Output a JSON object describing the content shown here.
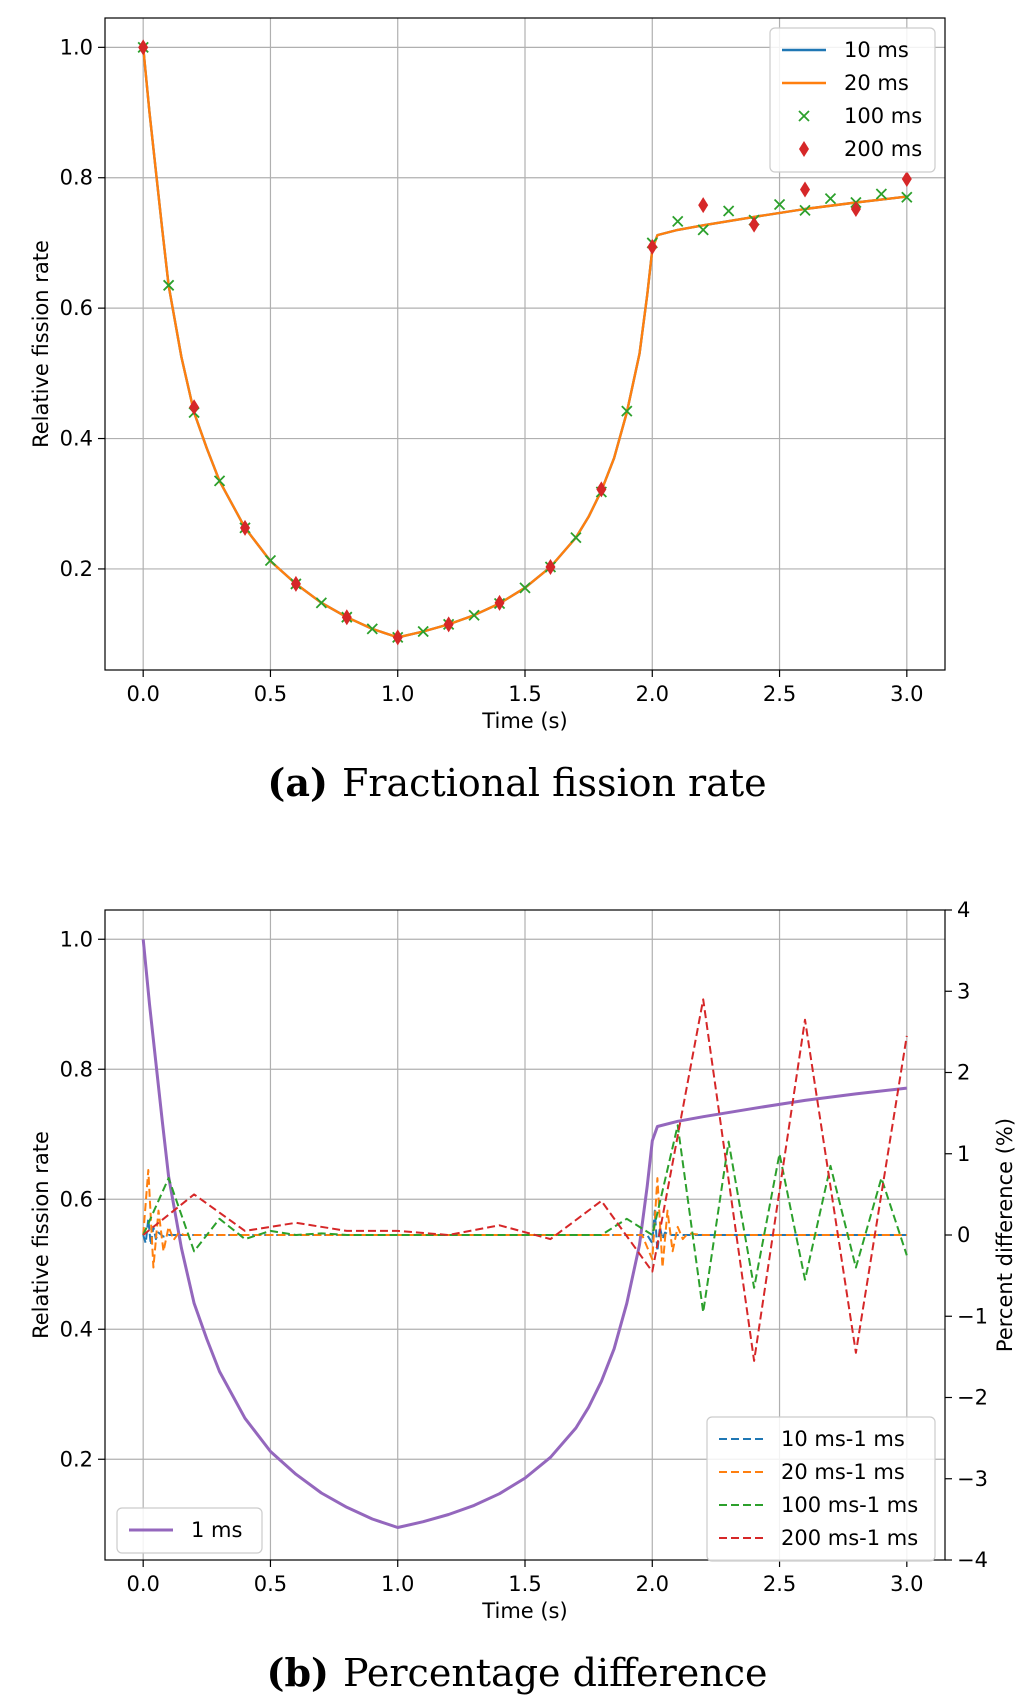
{
  "colors": {
    "c10": "#1f77b4",
    "c20": "#ff7f0e",
    "c100": "#2ca02c",
    "c200": "#d62728",
    "c1": "#9467bd",
    "grid": "#b0b0b0",
    "axis": "#000000"
  },
  "chart_data": [
    {
      "type": "line",
      "xlabel": "Time (s)",
      "ylabel": "Relative fission rate",
      "xlim": [
        -0.15,
        3.15
      ],
      "ylim": [
        0.045,
        1.045
      ],
      "xticks": [
        "0.0",
        "0.5",
        "1.0",
        "1.5",
        "2.0",
        "2.5",
        "3.0"
      ],
      "yticks": [
        "0.2",
        "0.4",
        "0.6",
        "0.8",
        "1.0"
      ],
      "grid": true,
      "legend_position": "top-right",
      "caption_tag": "(a)",
      "caption_text": "Fractional fission rate",
      "series": [
        {
          "name": "10 ms",
          "style": "line",
          "color": "#1f77b4",
          "x": [
            0,
            0.025,
            0.05,
            0.075,
            0.1,
            0.15,
            0.2,
            0.25,
            0.3,
            0.4,
            0.5,
            0.6,
            0.7,
            0.8,
            0.9,
            1.0,
            1.1,
            1.2,
            1.3,
            1.4,
            1.5,
            1.6,
            1.7,
            1.75,
            1.8,
            1.85,
            1.9,
            1.95,
            1.98,
            2.0,
            2.02,
            2.1,
            2.2,
            2.4,
            2.6,
            2.8,
            3.0
          ],
          "y": [
            1.0,
            0.9,
            0.81,
            0.72,
            0.635,
            0.525,
            0.44,
            0.385,
            0.335,
            0.263,
            0.212,
            0.177,
            0.148,
            0.126,
            0.108,
            0.095,
            0.104,
            0.115,
            0.129,
            0.147,
            0.171,
            0.203,
            0.248,
            0.28,
            0.32,
            0.37,
            0.44,
            0.53,
            0.62,
            0.69,
            0.712,
            0.72,
            0.727,
            0.74,
            0.752,
            0.762,
            0.771
          ]
        },
        {
          "name": "20 ms",
          "style": "line",
          "color": "#ff7f0e",
          "x": [
            0,
            0.025,
            0.05,
            0.075,
            0.1,
            0.15,
            0.2,
            0.25,
            0.3,
            0.4,
            0.5,
            0.6,
            0.7,
            0.8,
            0.9,
            1.0,
            1.1,
            1.2,
            1.3,
            1.4,
            1.5,
            1.6,
            1.7,
            1.75,
            1.8,
            1.85,
            1.9,
            1.95,
            1.98,
            2.0,
            2.02,
            2.1,
            2.2,
            2.4,
            2.6,
            2.8,
            3.0
          ],
          "y": [
            1.0,
            0.9,
            0.81,
            0.72,
            0.635,
            0.525,
            0.44,
            0.385,
            0.335,
            0.263,
            0.212,
            0.177,
            0.148,
            0.126,
            0.108,
            0.095,
            0.104,
            0.115,
            0.129,
            0.147,
            0.171,
            0.203,
            0.248,
            0.28,
            0.32,
            0.37,
            0.44,
            0.53,
            0.62,
            0.69,
            0.712,
            0.72,
            0.727,
            0.74,
            0.752,
            0.762,
            0.771
          ]
        },
        {
          "name": "100 ms",
          "style": "x",
          "color": "#2ca02c",
          "x": [
            0,
            0.1,
            0.2,
            0.3,
            0.4,
            0.5,
            0.6,
            0.7,
            0.8,
            0.9,
            1.0,
            1.1,
            1.2,
            1.3,
            1.4,
            1.5,
            1.6,
            1.7,
            1.8,
            1.9,
            2.0,
            2.1,
            2.2,
            2.3,
            2.4,
            2.5,
            2.6,
            2.7,
            2.8,
            2.9,
            3.0
          ],
          "y": [
            1.0,
            0.635,
            0.44,
            0.335,
            0.263,
            0.213,
            0.177,
            0.148,
            0.126,
            0.108,
            0.095,
            0.104,
            0.115,
            0.129,
            0.147,
            0.171,
            0.203,
            0.248,
            0.318,
            0.442,
            0.7,
            0.733,
            0.72,
            0.749,
            0.735,
            0.759,
            0.75,
            0.768,
            0.762,
            0.775,
            0.77
          ]
        },
        {
          "name": "200 ms",
          "style": "diamond",
          "color": "#d62728",
          "x": [
            0,
            0.2,
            0.4,
            0.6,
            0.8,
            1.0,
            1.2,
            1.4,
            1.6,
            1.8,
            2.0,
            2.2,
            2.4,
            2.6,
            2.8,
            3.0
          ],
          "y": [
            1.0,
            0.448,
            0.263,
            0.177,
            0.126,
            0.095,
            0.115,
            0.148,
            0.203,
            0.322,
            0.694,
            0.758,
            0.728,
            0.782,
            0.752,
            0.798
          ]
        }
      ]
    },
    {
      "type": "line",
      "xlabel": "Time (s)",
      "ylabel": "Relative fission rate",
      "y2label": "Percent difference (%)",
      "xlim": [
        -0.15,
        3.15
      ],
      "ylim": [
        0.045,
        1.045
      ],
      "y2lim": [
        -4,
        4
      ],
      "xticks": [
        "0.0",
        "0.5",
        "1.0",
        "1.5",
        "2.0",
        "2.5",
        "3.0"
      ],
      "yticks": [
        "0.2",
        "0.4",
        "0.6",
        "0.8",
        "1.0"
      ],
      "y2ticks": [
        "−4",
        "−3",
        "−2",
        "−1",
        "0",
        "1",
        "2",
        "3",
        "4"
      ],
      "grid": true,
      "legend_position": "bottom-right and bottom-left",
      "caption_tag": "(b)",
      "caption_text": "Percentage difference",
      "series": [
        {
          "name": "1 ms",
          "axis": "left",
          "style": "line",
          "color": "#9467bd",
          "x": [
            0,
            0.025,
            0.05,
            0.075,
            0.1,
            0.15,
            0.2,
            0.25,
            0.3,
            0.4,
            0.5,
            0.6,
            0.7,
            0.8,
            0.9,
            1.0,
            1.1,
            1.2,
            1.3,
            1.4,
            1.5,
            1.6,
            1.7,
            1.75,
            1.8,
            1.85,
            1.9,
            1.95,
            1.98,
            2.0,
            2.02,
            2.1,
            2.2,
            2.4,
            2.6,
            2.8,
            3.0
          ],
          "y": [
            1.0,
            0.9,
            0.81,
            0.72,
            0.635,
            0.525,
            0.44,
            0.385,
            0.335,
            0.263,
            0.212,
            0.177,
            0.148,
            0.126,
            0.108,
            0.095,
            0.104,
            0.115,
            0.129,
            0.147,
            0.171,
            0.203,
            0.248,
            0.28,
            0.32,
            0.37,
            0.44,
            0.53,
            0.62,
            0.69,
            0.712,
            0.72,
            0.727,
            0.74,
            0.752,
            0.762,
            0.771
          ]
        },
        {
          "name": "10 ms-1 ms",
          "axis": "right",
          "style": "dashed",
          "color": "#1f77b4",
          "x": [
            0,
            0.01,
            0.02,
            0.03,
            0.04,
            0.05,
            0.06,
            0.08,
            0.1,
            0.5,
            1.0,
            1.5,
            1.98,
            2.0,
            2.01,
            2.02,
            2.03,
            2.04,
            2.05,
            2.07,
            2.1,
            2.5,
            3.0
          ],
          "y": [
            0,
            -0.1,
            0.2,
            -0.12,
            0.1,
            -0.05,
            0.03,
            -0.02,
            0,
            0,
            0,
            0,
            0,
            -0.1,
            0.3,
            -0.2,
            0.1,
            -0.05,
            0.03,
            0,
            0,
            0,
            0
          ]
        },
        {
          "name": "20 ms-1 ms",
          "axis": "right",
          "style": "dashed",
          "color": "#ff7f0e",
          "x": [
            0,
            0.02,
            0.04,
            0.06,
            0.08,
            0.1,
            0.12,
            0.14,
            0.16,
            0.2,
            0.5,
            1.0,
            1.5,
            1.96,
            2.0,
            2.02,
            2.04,
            2.06,
            2.08,
            2.1,
            2.12,
            2.14,
            2.2,
            2.5,
            3.0
          ],
          "y": [
            0,
            0.8,
            -0.4,
            0.3,
            -0.2,
            0.1,
            -0.06,
            0.03,
            0,
            0,
            0,
            0,
            0,
            0,
            -0.3,
            0.7,
            -0.4,
            0.3,
            -0.2,
            0.1,
            -0.05,
            0.02,
            0,
            0,
            0
          ]
        },
        {
          "name": "100 ms-1 ms",
          "axis": "right",
          "style": "dashed",
          "color": "#2ca02c",
          "x": [
            0,
            0.1,
            0.2,
            0.3,
            0.4,
            0.5,
            0.6,
            0.7,
            0.8,
            0.9,
            1.0,
            1.1,
            1.2,
            1.3,
            1.4,
            1.5,
            1.6,
            1.7,
            1.8,
            1.9,
            2.0,
            2.1,
            2.2,
            2.3,
            2.4,
            2.5,
            2.6,
            2.7,
            2.8,
            2.9,
            3.0
          ],
          "y": [
            0,
            0.7,
            -0.2,
            0.2,
            -0.05,
            0.05,
            0,
            0.02,
            0,
            0,
            0,
            0,
            0,
            0,
            0,
            0,
            0,
            0,
            0,
            0.2,
            0,
            1.35,
            -0.95,
            1.15,
            -0.65,
            1.0,
            -0.55,
            0.85,
            -0.4,
            0.7,
            -0.25
          ]
        },
        {
          "name": "200 ms-1 ms",
          "axis": "right",
          "style": "dashed",
          "color": "#d62728",
          "x": [
            0,
            0.2,
            0.4,
            0.6,
            0.8,
            1.0,
            1.2,
            1.4,
            1.6,
            1.8,
            2.0,
            2.2,
            2.4,
            2.6,
            2.8,
            3.0
          ],
          "y": [
            0,
            0.5,
            0.05,
            0.15,
            0.05,
            0.05,
            0,
            0.12,
            -0.05,
            0.42,
            -0.45,
            2.9,
            -1.55,
            2.65,
            -1.45,
            2.45
          ]
        }
      ]
    }
  ]
}
